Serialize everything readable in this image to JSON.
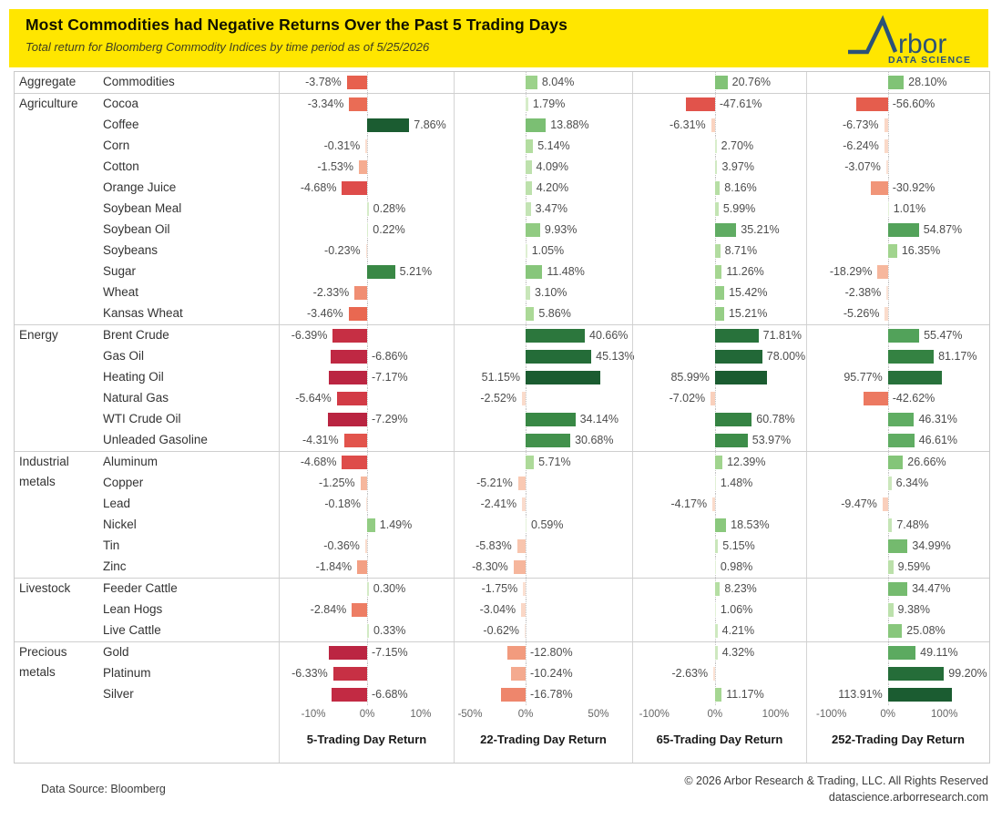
{
  "header": {
    "title": "Most Commodities had Negative Returns Over the Past 5 Trading Days",
    "subtitle": "Total return for Bloomberg Commodity Indices by time period as of 5/25/2026"
  },
  "logo": {
    "brand": "rbor",
    "tagline": "DATA SCIENCE",
    "color": "#2b5277",
    "background": "#FFE600"
  },
  "footer": {
    "source": "Data Source: Bloomberg",
    "copyright": "© 2026 Arbor Research & Trading, LLC. All Rights Reserved",
    "website": "datascience.arborresearch.com"
  },
  "colors": {
    "banner_bg": "#FFE600",
    "border": "#cfcfcf",
    "zero_line": "#c2c2c2",
    "value_label": "#4d4d4d"
  },
  "chart_data": {
    "type": "bar",
    "orientation": "horizontal",
    "note": "Four small-multiple panels of diverging bars; color = diverging red/green scaled to each column's max absolute value; grid off; dotted zero line per panel",
    "columns": [
      {
        "label": "5-Trading Day Return",
        "ticks": [
          {
            "v": -10,
            "label": "-10%"
          },
          {
            "v": 0,
            "label": "0%"
          },
          {
            "v": 10,
            "label": "10%"
          }
        ],
        "xlim": [
          -16.3,
          16.3
        ]
      },
      {
        "label": "22-Trading Day Return",
        "ticks": [
          {
            "v": -50,
            "label": "-50%"
          },
          {
            "v": 0,
            "label": "0%"
          },
          {
            "v": 50,
            "label": "50%"
          }
        ],
        "xlim": [
          -48.8,
          73.8
        ]
      },
      {
        "label": "65-Trading Day Return",
        "ticks": [
          {
            "v": -100,
            "label": "-100%"
          },
          {
            "v": 0,
            "label": "0%"
          },
          {
            "v": 100,
            "label": "100%"
          }
        ],
        "xlim": [
          -135,
          152
        ]
      },
      {
        "label": "252-Trading Day Return",
        "ticks": [
          {
            "v": -100,
            "label": "-100%"
          },
          {
            "v": 0,
            "label": "0%"
          },
          {
            "v": 100,
            "label": "100%"
          }
        ],
        "xlim": [
          -143,
          181
        ]
      }
    ],
    "color_scale": {
      "negative_ramp": [
        [
          0,
          "#fcebe1"
        ],
        [
          0.12,
          "#f8c3ab"
        ],
        [
          0.25,
          "#f29b7e"
        ],
        [
          0.45,
          "#e9654f"
        ],
        [
          0.65,
          "#da4348"
        ],
        [
          0.85,
          "#c22a43"
        ],
        [
          1,
          "#b01e40"
        ]
      ],
      "positive_ramp": [
        [
          0,
          "#e9f4df"
        ],
        [
          0.12,
          "#a8d894"
        ],
        [
          0.25,
          "#7fc275"
        ],
        [
          0.45,
          "#58a75e"
        ],
        [
          0.65,
          "#3a8a46"
        ],
        [
          0.85,
          "#27703a"
        ],
        [
          1,
          "#1b5c31"
        ]
      ]
    },
    "groups": [
      {
        "category": "Aggregate",
        "rows": [
          {
            "name": "Commodities",
            "values": [
              -3.78,
              8.04,
              20.76,
              28.1
            ],
            "flips": [
              0,
              0,
              0,
              0
            ]
          }
        ]
      },
      {
        "category": "Agriculture",
        "rows": [
          {
            "name": "Cocoa",
            "values": [
              -3.34,
              1.79,
              -47.61,
              -56.6
            ],
            "flips": [
              0,
              0,
              1,
              1
            ]
          },
          {
            "name": "Coffee",
            "values": [
              7.86,
              13.88,
              -6.31,
              -6.73
            ],
            "flips": [
              0,
              0,
              0,
              0
            ]
          },
          {
            "name": "Corn",
            "values": [
              -0.31,
              5.14,
              2.7,
              -6.24
            ],
            "flips": [
              0,
              0,
              0,
              0
            ]
          },
          {
            "name": "Cotton",
            "values": [
              -1.53,
              4.09,
              3.97,
              -3.07
            ],
            "flips": [
              0,
              0,
              0,
              0
            ]
          },
          {
            "name": "Orange Juice",
            "values": [
              -4.68,
              4.2,
              8.16,
              -30.92
            ],
            "flips": [
              0,
              0,
              0,
              1
            ]
          },
          {
            "name": "Soybean Meal",
            "values": [
              0.28,
              3.47,
              5.99,
              1.01
            ],
            "flips": [
              0,
              0,
              0,
              0
            ]
          },
          {
            "name": "Soybean Oil",
            "values": [
              0.22,
              9.93,
              35.21,
              54.87
            ],
            "flips": [
              0,
              0,
              0,
              0
            ]
          },
          {
            "name": "Soybeans",
            "values": [
              -0.23,
              1.05,
              8.71,
              16.35
            ],
            "flips": [
              0,
              0,
              0,
              0
            ]
          },
          {
            "name": "Sugar",
            "values": [
              5.21,
              11.48,
              11.26,
              -18.29
            ],
            "flips": [
              0,
              0,
              0,
              0
            ]
          },
          {
            "name": "Wheat",
            "values": [
              -2.33,
              3.1,
              15.42,
              -2.38
            ],
            "flips": [
              0,
              0,
              0,
              0
            ]
          },
          {
            "name": "Kansas Wheat",
            "values": [
              -3.46,
              5.86,
              15.21,
              -5.26
            ],
            "flips": [
              0,
              0,
              0,
              0
            ]
          }
        ]
      },
      {
        "category": "Energy",
        "rows": [
          {
            "name": "Brent Crude",
            "values": [
              -6.39,
              40.66,
              71.81,
              55.47
            ],
            "flips": [
              0,
              0,
              0,
              0
            ]
          },
          {
            "name": "Gas Oil",
            "values": [
              -6.86,
              45.13,
              78.0,
              81.17
            ],
            "flips": [
              1,
              0,
              0,
              0
            ]
          },
          {
            "name": "Heating Oil",
            "values": [
              -7.17,
              51.15,
              85.99,
              95.77
            ],
            "flips": [
              1,
              1,
              1,
              1
            ]
          },
          {
            "name": "Natural Gas",
            "values": [
              -5.64,
              -2.52,
              -7.02,
              -42.62
            ],
            "flips": [
              0,
              0,
              0,
              1
            ]
          },
          {
            "name": "WTI Crude Oil",
            "values": [
              -7.29,
              34.14,
              60.78,
              46.31
            ],
            "flips": [
              1,
              0,
              0,
              0
            ]
          },
          {
            "name": "Unleaded Gasoline",
            "values": [
              -4.31,
              30.68,
              53.97,
              46.61
            ],
            "flips": [
              0,
              0,
              0,
              0
            ]
          }
        ]
      },
      {
        "category": "Industrial metals",
        "rows": [
          {
            "name": "Aluminum",
            "values": [
              -4.68,
              5.71,
              12.39,
              26.66
            ],
            "flips": [
              0,
              0,
              0,
              0
            ]
          },
          {
            "name": "Copper",
            "values": [
              -1.25,
              -5.21,
              1.48,
              6.34
            ],
            "flips": [
              0,
              0,
              0,
              0
            ]
          },
          {
            "name": "Lead",
            "values": [
              -0.18,
              -2.41,
              -4.17,
              -9.47
            ],
            "flips": [
              0,
              0,
              0,
              0
            ]
          },
          {
            "name": "Nickel",
            "values": [
              1.49,
              0.59,
              18.53,
              7.48
            ],
            "flips": [
              0,
              0,
              0,
              0
            ]
          },
          {
            "name": "Tin",
            "values": [
              -0.36,
              -5.83,
              5.15,
              34.99
            ],
            "flips": [
              0,
              0,
              0,
              0
            ]
          },
          {
            "name": "Zinc",
            "values": [
              -1.84,
              -8.3,
              0.98,
              9.59
            ],
            "flips": [
              0,
              0,
              0,
              0
            ]
          }
        ]
      },
      {
        "category": "Livestock",
        "rows": [
          {
            "name": "Feeder Cattle",
            "values": [
              0.3,
              -1.75,
              8.23,
              34.47
            ],
            "flips": [
              0,
              0,
              0,
              0
            ]
          },
          {
            "name": "Lean Hogs",
            "values": [
              -2.84,
              -3.04,
              1.06,
              9.38
            ],
            "flips": [
              0,
              0,
              0,
              0
            ]
          },
          {
            "name": "Live Cattle",
            "values": [
              0.33,
              -0.62,
              4.21,
              25.08
            ],
            "flips": [
              0,
              0,
              0,
              0
            ]
          }
        ]
      },
      {
        "category": "Precious metals",
        "rows": [
          {
            "name": "Gold",
            "values": [
              -7.15,
              -12.8,
              4.32,
              49.11
            ],
            "flips": [
              1,
              1,
              0,
              0
            ]
          },
          {
            "name": "Platinum",
            "values": [
              -6.33,
              -10.24,
              -2.63,
              99.2
            ],
            "flips": [
              0,
              1,
              0,
              0
            ]
          },
          {
            "name": "Silver",
            "values": [
              -6.68,
              -16.78,
              11.17,
              113.91
            ],
            "flips": [
              1,
              1,
              0,
              1
            ]
          }
        ]
      }
    ]
  }
}
